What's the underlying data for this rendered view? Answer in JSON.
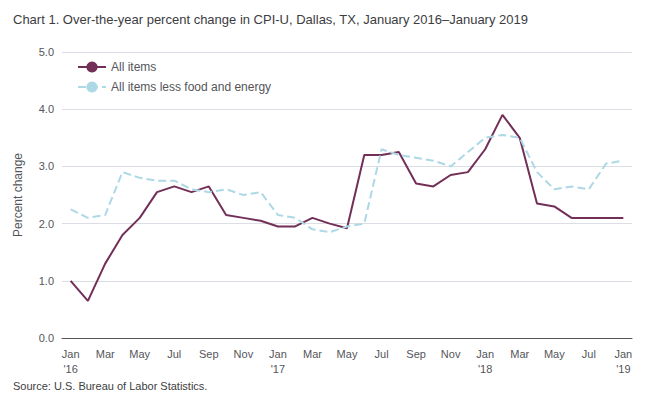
{
  "chart_data": {
    "type": "line",
    "title": "Chart 1. Over-the-year percent change in CPI-U, Dallas, TX, January 2016–January 2019",
    "ylabel": "Percent change",
    "source": "Source: U.S. Bureau of Labor Statistics.",
    "categories": [
      "Jan",
      null,
      "Mar",
      null,
      "May",
      null,
      "Jul",
      null,
      "Sep",
      null,
      "Nov",
      null,
      "Jan",
      null,
      "Mar",
      null,
      "May",
      null,
      "Jul",
      null,
      "Sep",
      null,
      "Nov",
      null,
      "Jan",
      null,
      "Mar",
      null,
      "May",
      null,
      "Jul",
      null,
      "Jan"
    ],
    "series": [
      {
        "name": "All items",
        "color": "#722f57",
        "line_style": "solid",
        "values": [
          1.0,
          0.65,
          1.3,
          1.8,
          2.1,
          2.55,
          2.65,
          2.55,
          2.65,
          2.15,
          2.1,
          2.05,
          1.95,
          1.95,
          2.1,
          2.0,
          1.92,
          3.2,
          3.2,
          3.25,
          2.7,
          2.65,
          2.85,
          2.9,
          3.3,
          3.9,
          3.5,
          2.35,
          2.3,
          2.1,
          2.1,
          2.1,
          2.1
        ]
      },
      {
        "name": "All items less food and energy",
        "color": "#add8e6",
        "line_style": "dashed",
        "values": [
          2.25,
          2.1,
          2.15,
          2.9,
          2.8,
          2.75,
          2.75,
          2.6,
          2.55,
          2.6,
          2.5,
          2.55,
          2.15,
          2.1,
          1.9,
          1.85,
          1.95,
          2.0,
          3.3,
          3.2,
          3.15,
          3.1,
          3.0,
          3.25,
          3.5,
          3.55,
          3.5,
          2.9,
          2.6,
          2.65,
          2.6,
          3.05,
          3.1
        ]
      }
    ],
    "annotations": [
      {
        "x": 0,
        "label": "'16"
      },
      {
        "x": 12,
        "label": "'17"
      },
      {
        "x": 24,
        "label": "'18"
      },
      {
        "x": 32,
        "label": "'19"
      }
    ],
    "ylim": [
      0.0,
      5.0
    ],
    "yticks": [
      {
        "value": 0.0,
        "label": "0.0"
      },
      {
        "value": 1.0,
        "label": "1.0"
      },
      {
        "value": 2.0,
        "label": "2.0"
      },
      {
        "value": 3.0,
        "label": "3.0"
      },
      {
        "value": 4.0,
        "label": "4.0"
      },
      {
        "value": 5.0,
        "label": "5.0"
      }
    ],
    "grid": true,
    "legend": "upper left"
  }
}
